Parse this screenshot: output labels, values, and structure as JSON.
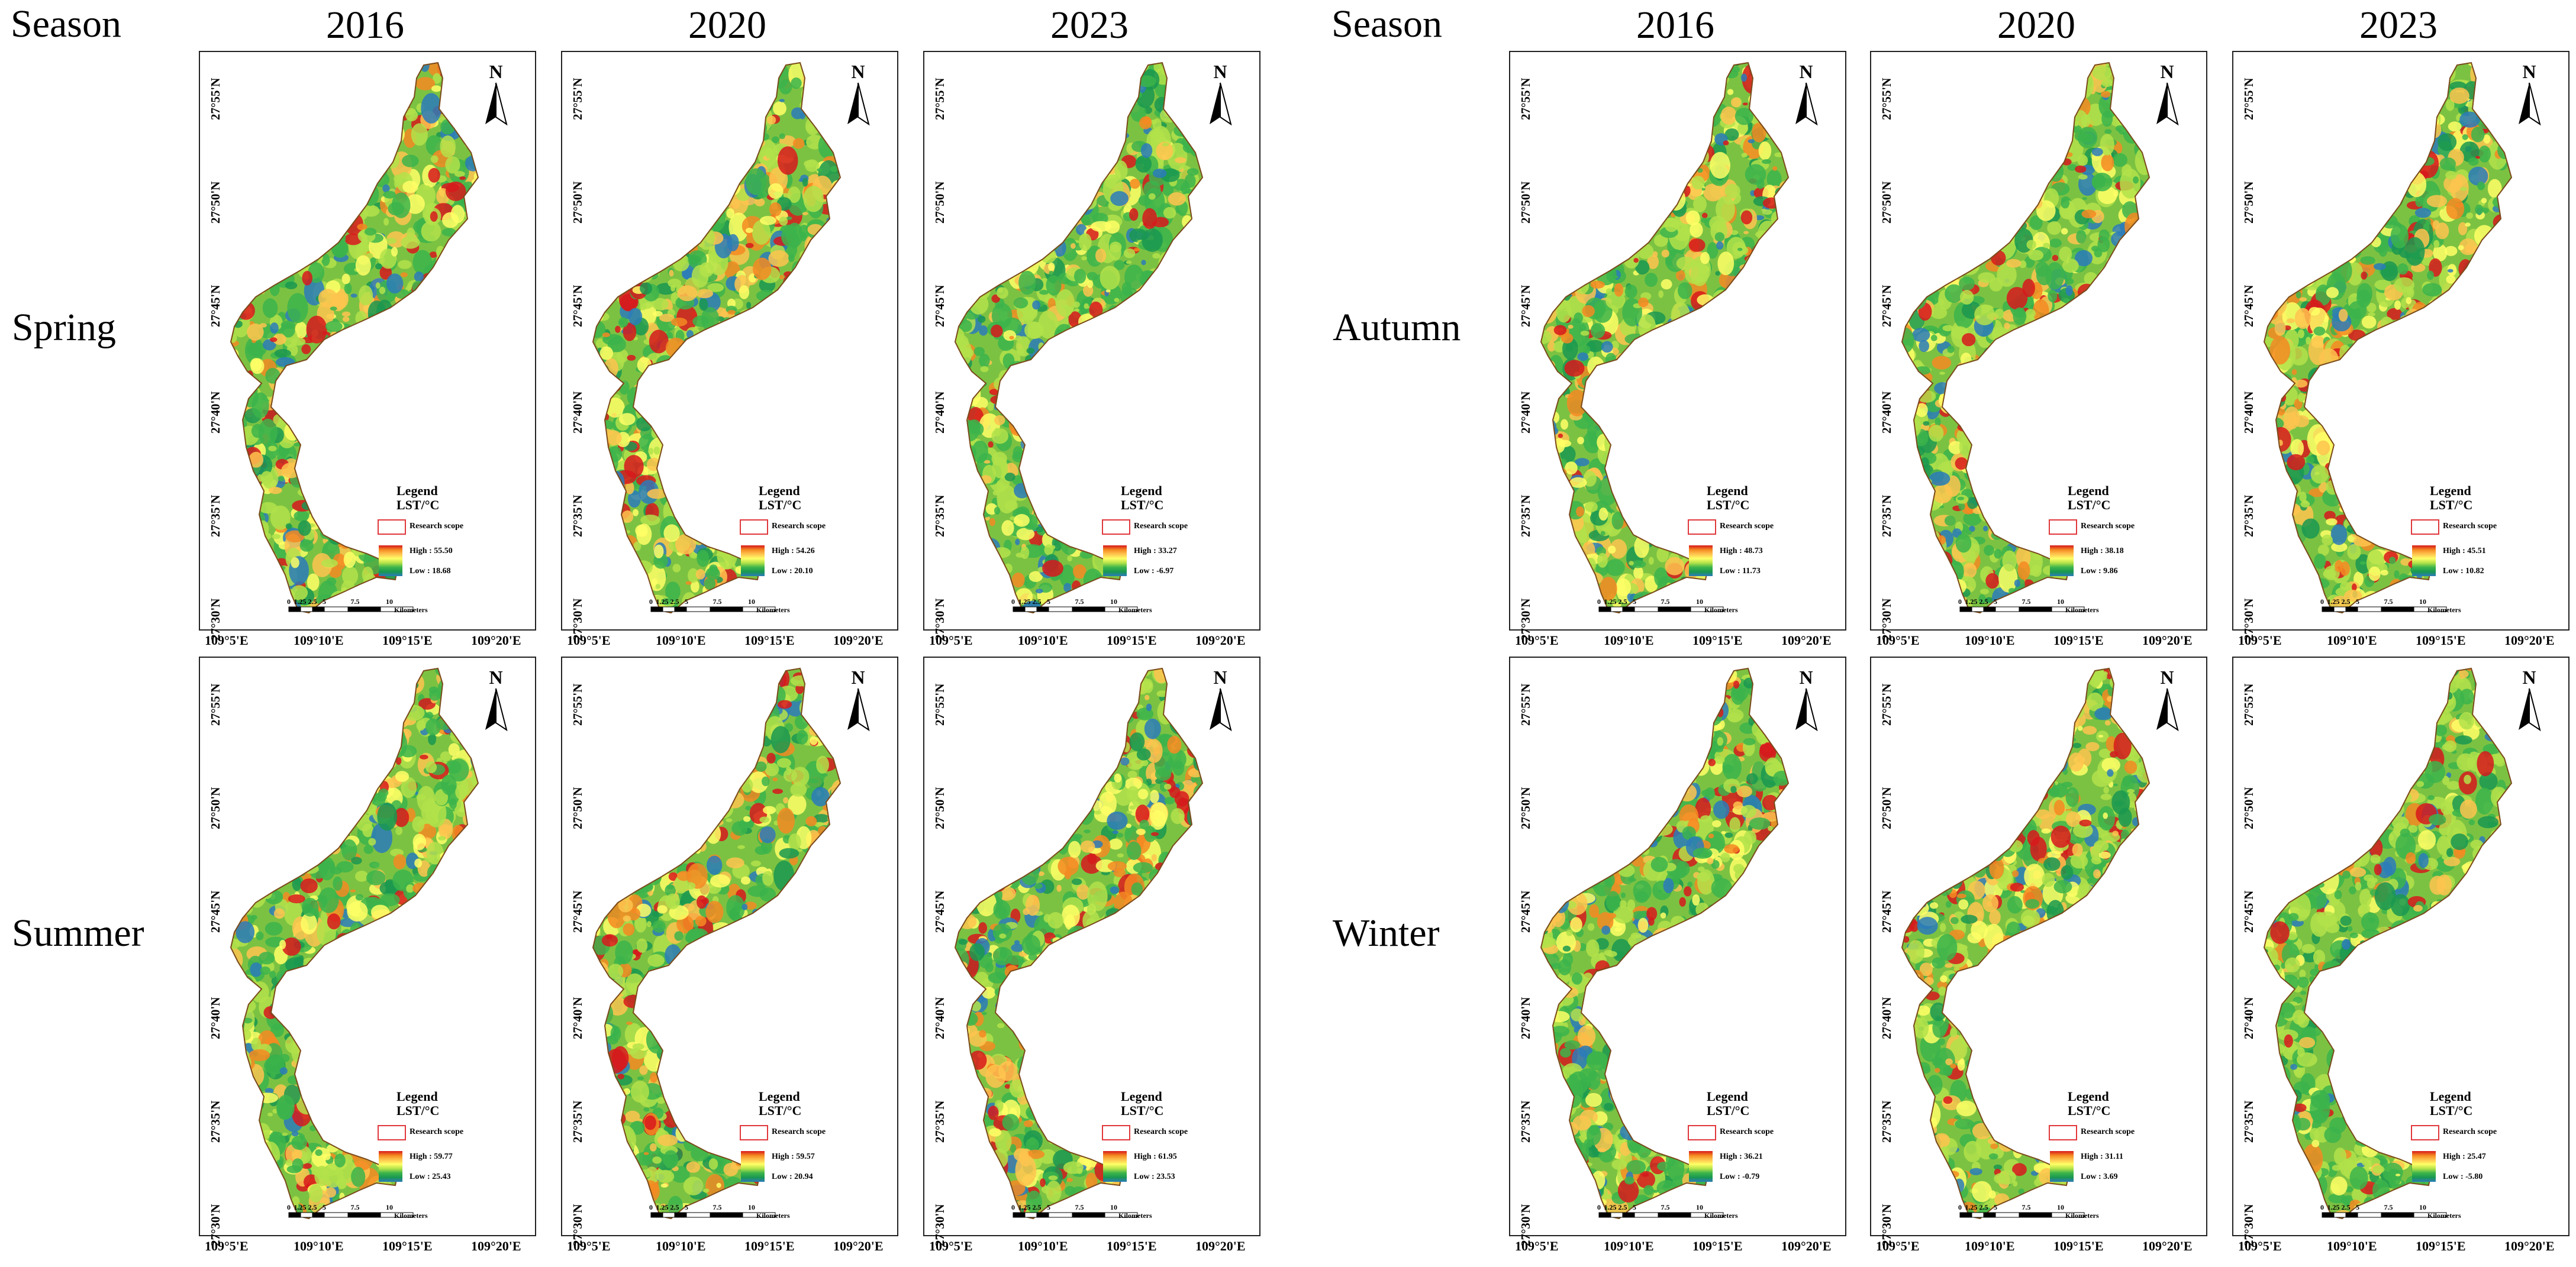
{
  "headers": {
    "season_label": "Season",
    "years": [
      "2016",
      "2020",
      "2023"
    ]
  },
  "seasons": [
    "Spring",
    "Summer",
    "Autumn",
    "Winter"
  ],
  "axes": {
    "lat_ticks": [
      "27°55'N",
      "27°50'N",
      "27°45'N",
      "27°40'N",
      "27°35'N",
      "27°30'N"
    ],
    "lon_ticks": [
      "109°5'E",
      "109°10'E",
      "109°15'E",
      "109°20'E"
    ]
  },
  "legend": {
    "title": "Legend",
    "unit": "LST/°C",
    "scope_label": "Research scope",
    "high_prefix": "High : ",
    "low_prefix": "Low : ",
    "scale_ticks": [
      "0",
      "1.25 2.5",
      "5",
      "7.5",
      "10"
    ],
    "scale_unit": "Kilometers",
    "north": "N"
  },
  "panels": {
    "Spring": [
      {
        "year": "2016",
        "high": "55.50",
        "low": "18.68",
        "warmth": 0.45
      },
      {
        "year": "2020",
        "high": "54.26",
        "low": "20.10",
        "warmth": 0.5
      },
      {
        "year": "2023",
        "high": "33.27",
        "low": "-6.97",
        "warmth": 0.3
      }
    ],
    "Summer": [
      {
        "year": "2016",
        "high": "59.77",
        "low": "25.43",
        "warmth": 0.45
      },
      {
        "year": "2020",
        "high": "59.57",
        "low": "20.94",
        "warmth": 0.55
      },
      {
        "year": "2023",
        "high": "61.95",
        "low": "23.53",
        "warmth": 0.55
      }
    ],
    "Autumn": [
      {
        "year": "2016",
        "high": "48.73",
        "low": "11.73",
        "warmth": 0.45
      },
      {
        "year": "2020",
        "high": "38.18",
        "low": "9.86",
        "warmth": 0.35
      },
      {
        "year": "2023",
        "high": "45.51",
        "low": "10.82",
        "warmth": 0.6
      }
    ],
    "Winter": [
      {
        "year": "2016",
        "high": "36.21",
        "low": "-0.79",
        "warmth": 0.4
      },
      {
        "year": "2020",
        "high": "31.11",
        "low": "3.69",
        "warmth": 0.5
      },
      {
        "year": "2023",
        "high": "25.47",
        "low": "-5.80",
        "warmth": 0.3
      }
    ]
  },
  "colors": {
    "ramp": [
      "#d7191c",
      "#f58a22",
      "#fec44f",
      "#ffff66",
      "#b3e24a",
      "#3cb44b",
      "#1a9850",
      "#2b7bba"
    ],
    "scope": "#e0373b"
  }
}
